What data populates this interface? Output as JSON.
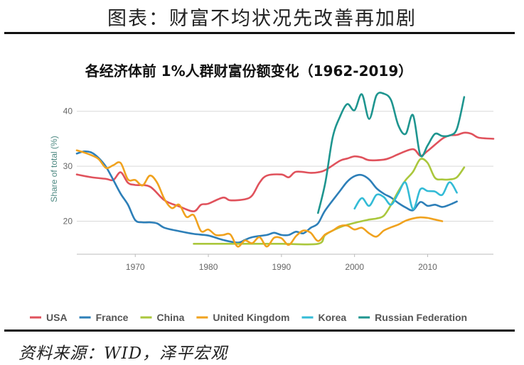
{
  "header": {
    "title": "图表：财富不均状况先改善再加剧"
  },
  "source": {
    "text": "资料来源：WID，泽平宏观"
  },
  "colors": {
    "USA": "#e0525c",
    "France": "#2d7fb8",
    "China": "#aac73c",
    "United Kingdom": "#f0a21e",
    "Korea": "#33bbd6",
    "Russian Federation": "#1e958f",
    "grid": "#d9d9d9",
    "axis_title": "#4f8a83"
  },
  "chart_data": {
    "type": "line",
    "title": "各经济体前 1%人群财富份额变化（1962-2019）",
    "xlabel": "",
    "ylabel": "Share of total (%)",
    "xlim": [
      1962,
      2019
    ],
    "ylim": [
      14,
      45
    ],
    "xticks": [
      1970,
      1980,
      1990,
      2000,
      2010
    ],
    "yticks": [
      20,
      30,
      40
    ],
    "grid": true,
    "legend": "bottom",
    "series": [
      {
        "name": "USA",
        "points": [
          [
            1962,
            28.5
          ],
          [
            1964,
            28.0
          ],
          [
            1966,
            27.7
          ],
          [
            1967,
            27.5
          ],
          [
            1968,
            28.9
          ],
          [
            1969,
            27.0
          ],
          [
            1970,
            26.6
          ],
          [
            1972,
            26.3
          ],
          [
            1974,
            23.8
          ],
          [
            1976,
            22.7
          ],
          [
            1978,
            21.8
          ],
          [
            1979,
            23.0
          ],
          [
            1980,
            23.2
          ],
          [
            1982,
            24.3
          ],
          [
            1983,
            23.8
          ],
          [
            1985,
            24.0
          ],
          [
            1986,
            24.7
          ],
          [
            1987,
            27.0
          ],
          [
            1988,
            28.3
          ],
          [
            1990,
            28.5
          ],
          [
            1991,
            28.0
          ],
          [
            1992,
            29.0
          ],
          [
            1994,
            28.8
          ],
          [
            1995,
            28.9
          ],
          [
            1996,
            29.3
          ],
          [
            1998,
            31.0
          ],
          [
            1999,
            31.4
          ],
          [
            2000,
            31.8
          ],
          [
            2001,
            31.6
          ],
          [
            2002,
            31.1
          ],
          [
            2004,
            31.2
          ],
          [
            2005,
            31.6
          ],
          [
            2006,
            32.2
          ],
          [
            2008,
            33.1
          ],
          [
            2009,
            31.9
          ],
          [
            2010,
            32.8
          ],
          [
            2012,
            35.0
          ],
          [
            2013,
            35.6
          ],
          [
            2014,
            35.7
          ],
          [
            2015,
            36.1
          ],
          [
            2016,
            35.9
          ],
          [
            2017,
            35.2
          ],
          [
            2019,
            35.0
          ]
        ]
      },
      {
        "name": "France",
        "points": [
          [
            1962,
            32.3
          ],
          [
            1963,
            32.7
          ],
          [
            1964,
            32.5
          ],
          [
            1965,
            31.5
          ],
          [
            1966,
            29.9
          ],
          [
            1967,
            27.5
          ],
          [
            1968,
            25.0
          ],
          [
            1969,
            23.0
          ],
          [
            1970,
            20.2
          ],
          [
            1971,
            19.8
          ],
          [
            1972,
            19.8
          ],
          [
            1973,
            19.6
          ],
          [
            1974,
            18.8
          ],
          [
            1976,
            18.2
          ],
          [
            1978,
            17.7
          ],
          [
            1980,
            17.4
          ],
          [
            1982,
            16.6
          ],
          [
            1984,
            16.1
          ],
          [
            1985,
            16.6
          ],
          [
            1986,
            17.1
          ],
          [
            1988,
            17.5
          ],
          [
            1989,
            17.9
          ],
          [
            1990,
            17.5
          ],
          [
            1991,
            17.5
          ],
          [
            1992,
            18.1
          ],
          [
            1993,
            17.8
          ],
          [
            1994,
            18.8
          ],
          [
            1995,
            19.6
          ],
          [
            1996,
            22.0
          ],
          [
            1998,
            25.5
          ],
          [
            1999,
            27.2
          ],
          [
            2000,
            28.2
          ],
          [
            2001,
            28.4
          ],
          [
            2002,
            27.6
          ],
          [
            2003,
            26.0
          ],
          [
            2004,
            25.0
          ],
          [
            2005,
            24.3
          ],
          [
            2006,
            23.3
          ],
          [
            2007,
            22.5
          ],
          [
            2008,
            22.0
          ],
          [
            2009,
            23.5
          ],
          [
            2010,
            22.8
          ],
          [
            2011,
            23.0
          ],
          [
            2012,
            22.6
          ],
          [
            2013,
            23.0
          ],
          [
            2014,
            23.6
          ]
        ]
      },
      {
        "name": "China",
        "points": [
          [
            1978,
            15.9
          ],
          [
            1980,
            15.9
          ],
          [
            1985,
            15.9
          ],
          [
            1990,
            15.9
          ],
          [
            1995,
            15.9
          ],
          [
            1996,
            17.5
          ],
          [
            1998,
            18.9
          ],
          [
            2000,
            19.7
          ],
          [
            2002,
            20.3
          ],
          [
            2003,
            20.5
          ],
          [
            2004,
            21.0
          ],
          [
            2005,
            23.0
          ],
          [
            2006,
            25.5
          ],
          [
            2007,
            27.5
          ],
          [
            2008,
            29.0
          ],
          [
            2009,
            31.3
          ],
          [
            2010,
            30.6
          ],
          [
            2011,
            27.9
          ],
          [
            2012,
            27.6
          ],
          [
            2013,
            27.6
          ],
          [
            2014,
            28.0
          ],
          [
            2015,
            29.8
          ]
        ]
      },
      {
        "name": "United Kingdom",
        "points": [
          [
            1962,
            32.9
          ],
          [
            1963,
            32.5
          ],
          [
            1964,
            32.0
          ],
          [
            1965,
            31.3
          ],
          [
            1966,
            29.7
          ],
          [
            1967,
            30.2
          ],
          [
            1968,
            30.6
          ],
          [
            1969,
            27.6
          ],
          [
            1970,
            27.5
          ],
          [
            1971,
            26.5
          ],
          [
            1972,
            28.3
          ],
          [
            1973,
            27.0
          ],
          [
            1974,
            24.0
          ],
          [
            1975,
            22.4
          ],
          [
            1976,
            23.0
          ],
          [
            1977,
            20.8
          ],
          [
            1978,
            21.1
          ],
          [
            1979,
            18.2
          ],
          [
            1980,
            18.5
          ],
          [
            1981,
            17.5
          ],
          [
            1982,
            17.5
          ],
          [
            1983,
            17.6
          ],
          [
            1984,
            15.4
          ],
          [
            1985,
            16.5
          ],
          [
            1986,
            16.0
          ],
          [
            1987,
            17.1
          ],
          [
            1988,
            15.4
          ],
          [
            1989,
            17.0
          ],
          [
            1990,
            16.9
          ],
          [
            1991,
            15.7
          ],
          [
            1992,
            17.3
          ],
          [
            1993,
            18.3
          ],
          [
            1994,
            17.9
          ],
          [
            1995,
            16.4
          ],
          [
            1996,
            17.6
          ],
          [
            1997,
            18.3
          ],
          [
            1998,
            19.1
          ],
          [
            1999,
            19.2
          ],
          [
            2000,
            18.5
          ],
          [
            2001,
            18.8
          ],
          [
            2002,
            17.8
          ],
          [
            2003,
            17.2
          ],
          [
            2004,
            18.3
          ],
          [
            2005,
            18.9
          ],
          [
            2006,
            19.4
          ],
          [
            2007,
            20.1
          ],
          [
            2008,
            20.5
          ],
          [
            2009,
            20.7
          ],
          [
            2010,
            20.6
          ],
          [
            2011,
            20.3
          ],
          [
            2012,
            20.0
          ]
        ]
      },
      {
        "name": "Korea",
        "points": [
          [
            2000,
            22.3
          ],
          [
            2001,
            24.2
          ],
          [
            2002,
            22.8
          ],
          [
            2003,
            24.8
          ],
          [
            2004,
            24.4
          ],
          [
            2005,
            23.0
          ],
          [
            2006,
            25.1
          ],
          [
            2007,
            27.0
          ],
          [
            2008,
            22.2
          ],
          [
            2009,
            25.8
          ],
          [
            2010,
            25.5
          ],
          [
            2011,
            25.4
          ],
          [
            2012,
            24.8
          ],
          [
            2013,
            27.1
          ],
          [
            2014,
            25.2
          ]
        ]
      },
      {
        "name": "Russian Federation",
        "points": [
          [
            1995,
            21.5
          ],
          [
            1996,
            27.0
          ],
          [
            1997,
            35.2
          ],
          [
            1998,
            39.0
          ],
          [
            1999,
            41.3
          ],
          [
            2000,
            40.2
          ],
          [
            2001,
            43.1
          ],
          [
            2002,
            38.6
          ],
          [
            2003,
            42.9
          ],
          [
            2004,
            43.2
          ],
          [
            2005,
            42.0
          ],
          [
            2006,
            37.4
          ],
          [
            2007,
            35.9
          ],
          [
            2008,
            39.3
          ],
          [
            2009,
            32.0
          ],
          [
            2010,
            33.8
          ],
          [
            2011,
            35.9
          ],
          [
            2012,
            35.5
          ],
          [
            2013,
            35.6
          ],
          [
            2014,
            36.8
          ],
          [
            2015,
            42.6
          ]
        ]
      }
    ]
  }
}
